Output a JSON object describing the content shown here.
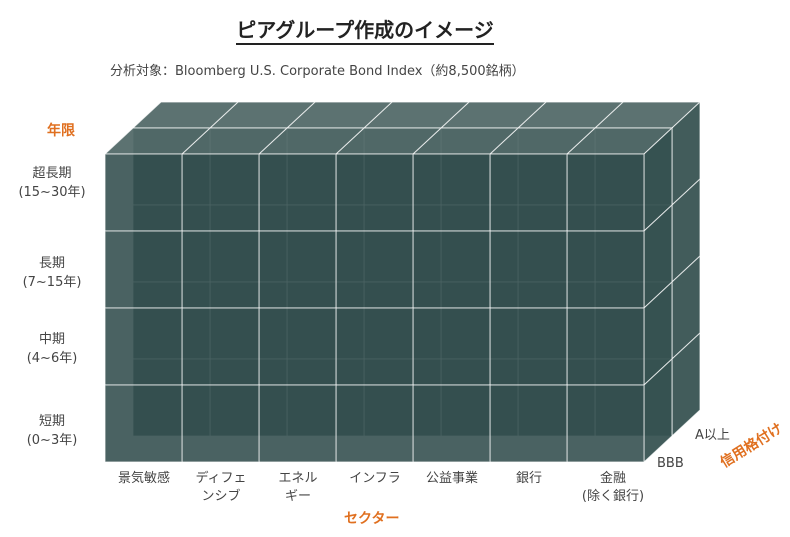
{
  "title": "ピアグループ作成のイメージ",
  "subtitle": "分析対象：Bloomberg U.S. Corporate Bond Index（約8,500銘柄）",
  "axes": {
    "row_axis_title": "年限",
    "column_axis_title": "セクター",
    "depth_axis_title": "信用格付け"
  },
  "rows": [
    {
      "line1": "超長期",
      "line2": "(15~30年)"
    },
    {
      "line1": "長期",
      "line2": "(7~15年)"
    },
    {
      "line1": "中期",
      "line2": "(4~6年)"
    },
    {
      "line1": "短期",
      "line2": "(0~3年)"
    }
  ],
  "columns": [
    {
      "line1": "景気敏感",
      "line2": ""
    },
    {
      "line1": "ディフェ",
      "line2": "ンシブ"
    },
    {
      "line1": "エネル",
      "line2": "ギー"
    },
    {
      "line1": "インフラ",
      "line2": ""
    },
    {
      "line1": "公益事業",
      "line2": ""
    },
    {
      "line1": "銀行",
      "line2": ""
    },
    {
      "line1": "金融",
      "line2": "(除く銀行)"
    }
  ],
  "ratings": [
    "A以上",
    "BBB"
  ],
  "colors": {
    "cube_front": "#22403f",
    "cube_top": "#4a6362",
    "cube_side": "#2d4a49",
    "accent": "#e07020"
  }
}
